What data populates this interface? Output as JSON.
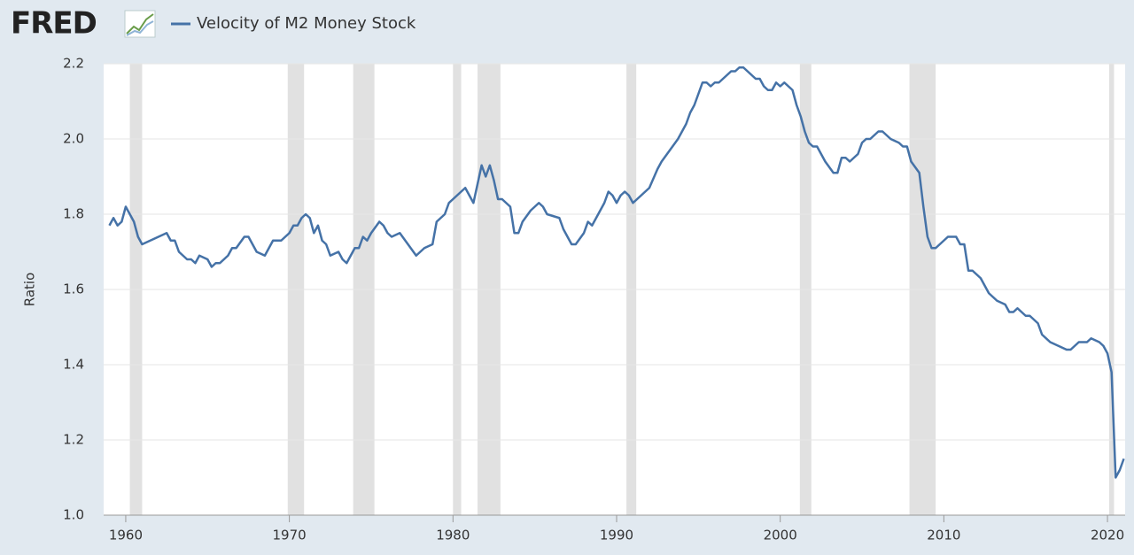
{
  "chart_data": {
    "type": "line",
    "logo": "FRED",
    "y_label": "Ratio",
    "xlim": [
      1958.65,
      2021.08
    ],
    "ylim": [
      1.0,
      2.2
    ],
    "xticks": [
      1960,
      1970,
      1980,
      1990,
      2000,
      2010,
      2020
    ],
    "yticks": [
      {
        "value": 1.0,
        "label": "1.0"
      },
      1.2,
      1.4,
      1.6,
      1.8,
      {
        "value": 2.0,
        "label": "2.0"
      },
      2.2
    ],
    "grid": true,
    "recession_color": "#e1e1e1",
    "recessions": [
      [
        1960.25,
        1961.0
      ],
      [
        1969.9,
        1970.9
      ],
      [
        1973.9,
        1975.2
      ],
      [
        1980.0,
        1980.5
      ],
      [
        1981.5,
        1982.9
      ],
      [
        1990.6,
        1991.2
      ],
      [
        2001.2,
        2001.9
      ],
      [
        2007.9,
        2009.5
      ],
      [
        2020.1,
        2020.4
      ]
    ],
    "x": [
      1959.0,
      1959.25,
      1959.5,
      1959.75,
      1960.0,
      1960.25,
      1960.5,
      1960.75,
      1961.0,
      1961.5,
      1962.0,
      1962.5,
      1962.75,
      1963.0,
      1963.25,
      1963.75,
      1964.0,
      1964.25,
      1964.5,
      1965.0,
      1965.25,
      1965.5,
      1965.75,
      1966.25,
      1966.5,
      1966.75,
      1967.25,
      1967.5,
      1967.75,
      1968.0,
      1968.5,
      1969.0,
      1969.5,
      1970.0,
      1970.25,
      1970.5,
      1970.75,
      1971.0,
      1971.25,
      1971.5,
      1971.75,
      1972.0,
      1972.25,
      1972.5,
      1973.0,
      1973.25,
      1973.5,
      1974.0,
      1974.25,
      1974.5,
      1974.75,
      1975.0,
      1975.5,
      1975.75,
      1976.0,
      1976.25,
      1976.75,
      1977.25,
      1977.75,
      1978.0,
      1978.25,
      1978.75,
      1979.0,
      1979.5,
      1979.75,
      1980.0,
      1980.5,
      1980.75,
      1981.0,
      1981.25,
      1981.75,
      1982.0,
      1982.25,
      1982.5,
      1982.75,
      1983.0,
      1983.5,
      1983.75,
      1984.0,
      1984.25,
      1984.75,
      1985.25,
      1985.5,
      1985.75,
      1986.5,
      1986.75,
      1987.25,
      1987.5,
      1988.0,
      1988.25,
      1988.5,
      1988.75,
      1989.25,
      1989.5,
      1989.75,
      1990.0,
      1990.25,
      1990.5,
      1990.75,
      1991.0,
      1991.25,
      1991.5,
      1992.0,
      1992.5,
      1992.75,
      1993.25,
      1993.75,
      1994.25,
      1994.5,
      1994.75,
      1995.0,
      1995.25,
      1995.5,
      1995.75,
      1996.0,
      1996.25,
      1996.5,
      1996.75,
      1997.0,
      1997.25,
      1997.5,
      1997.75,
      1998.0,
      1998.5,
      1998.75,
      1999.0,
      1999.25,
      1999.5,
      1999.75,
      2000.0,
      2000.25,
      2000.5,
      2000.75,
      2001.0,
      2001.25,
      2001.5,
      2001.75,
      2002.0,
      2002.25,
      2002.5,
      2002.75,
      2003.25,
      2003.5,
      2003.75,
      2004.0,
      2004.25,
      2004.5,
      2004.75,
      2005.0,
      2005.25,
      2005.5,
      2006.0,
      2006.25,
      2006.5,
      2006.75,
      2007.25,
      2007.5,
      2007.75,
      2008.0,
      2008.5,
      2008.75,
      2009.0,
      2009.25,
      2009.5,
      2010.0,
      2010.25,
      2010.75,
      2011.0,
      2011.25,
      2011.5,
      2011.75,
      2012.25,
      2012.75,
      2013.0,
      2013.25,
      2013.75,
      2014.0,
      2014.25,
      2014.5,
      2014.75,
      2015.0,
      2015.25,
      2015.5,
      2015.75,
      2016.0,
      2016.5,
      2017.0,
      2017.5,
      2017.75,
      2018.25,
      2018.5,
      2018.75,
      2019.0,
      2019.5,
      2019.75,
      2020.0,
      2020.25,
      2020.5,
      2020.75,
      2021.0
    ],
    "series": [
      {
        "name": "Velocity of M2 Money Stock",
        "color": "#4572a7",
        "values": [
          1.77,
          1.79,
          1.77,
          1.78,
          1.82,
          1.8,
          1.78,
          1.74,
          1.72,
          1.73,
          1.74,
          1.75,
          1.73,
          1.73,
          1.7,
          1.68,
          1.68,
          1.67,
          1.69,
          1.68,
          1.66,
          1.67,
          1.67,
          1.69,
          1.71,
          1.71,
          1.74,
          1.74,
          1.72,
          1.7,
          1.69,
          1.73,
          1.73,
          1.75,
          1.77,
          1.77,
          1.79,
          1.8,
          1.79,
          1.75,
          1.77,
          1.73,
          1.72,
          1.69,
          1.7,
          1.68,
          1.67,
          1.71,
          1.71,
          1.74,
          1.73,
          1.75,
          1.78,
          1.77,
          1.75,
          1.74,
          1.75,
          1.72,
          1.69,
          1.7,
          1.71,
          1.72,
          1.78,
          1.8,
          1.83,
          1.84,
          1.86,
          1.87,
          1.85,
          1.83,
          1.93,
          1.9,
          1.93,
          1.89,
          1.84,
          1.84,
          1.82,
          1.75,
          1.75,
          1.78,
          1.81,
          1.83,
          1.82,
          1.8,
          1.79,
          1.76,
          1.72,
          1.72,
          1.75,
          1.78,
          1.77,
          1.79,
          1.83,
          1.86,
          1.85,
          1.83,
          1.85,
          1.86,
          1.85,
          1.83,
          1.84,
          1.85,
          1.87,
          1.92,
          1.94,
          1.97,
          2.0,
          2.04,
          2.07,
          2.09,
          2.12,
          2.15,
          2.15,
          2.14,
          2.15,
          2.15,
          2.16,
          2.17,
          2.18,
          2.18,
          2.19,
          2.19,
          2.18,
          2.16,
          2.16,
          2.14,
          2.13,
          2.13,
          2.15,
          2.14,
          2.15,
          2.14,
          2.13,
          2.09,
          2.06,
          2.02,
          1.99,
          1.98,
          1.98,
          1.96,
          1.94,
          1.91,
          1.91,
          1.95,
          1.95,
          1.94,
          1.95,
          1.96,
          1.99,
          2.0,
          2.0,
          2.02,
          2.02,
          2.01,
          2.0,
          1.99,
          1.98,
          1.98,
          1.94,
          1.91,
          1.82,
          1.74,
          1.71,
          1.71,
          1.73,
          1.74,
          1.74,
          1.72,
          1.72,
          1.65,
          1.65,
          1.63,
          1.59,
          1.58,
          1.57,
          1.56,
          1.54,
          1.54,
          1.55,
          1.54,
          1.53,
          1.53,
          1.52,
          1.51,
          1.48,
          1.46,
          1.45,
          1.44,
          1.44,
          1.46,
          1.46,
          1.46,
          1.47,
          1.46,
          1.45,
          1.43,
          1.38,
          1.1,
          1.12,
          1.15
        ]
      }
    ]
  }
}
